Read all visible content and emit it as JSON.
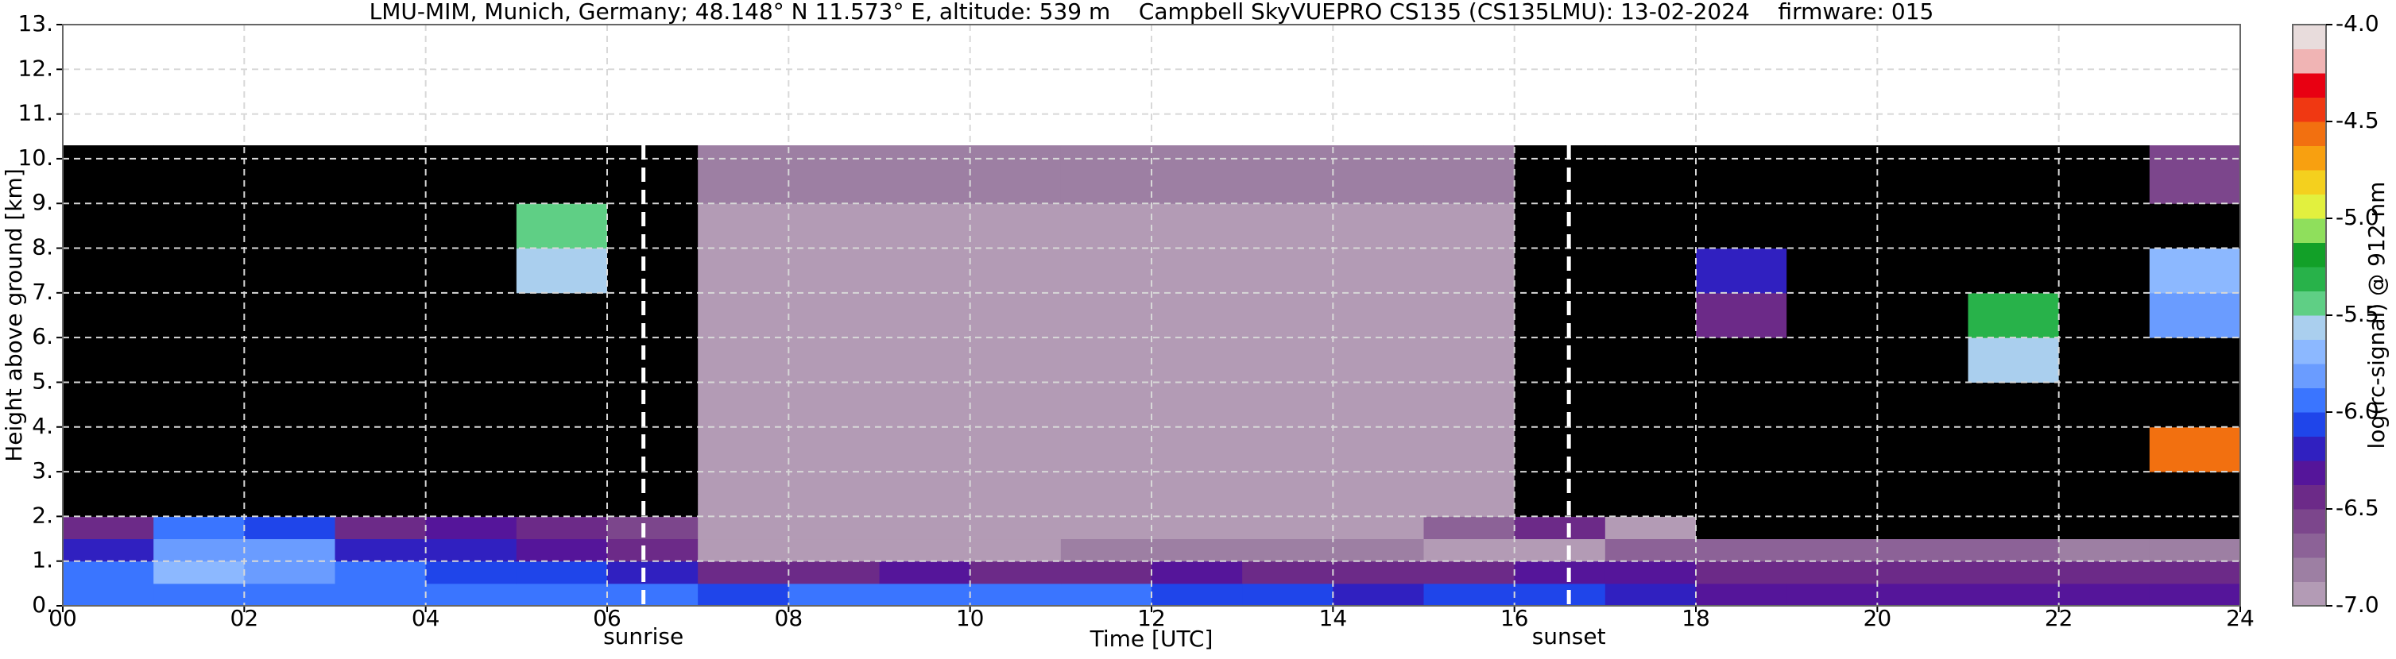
{
  "chart_data": {
    "type": "heatmap",
    "title": "LMU-MIM, Munich, Germany; 48.148° N 11.573° E, altitude: 539 m    Campbell SkyVUEPRO CS135 (CS135LMU): 13-02-2024    firmware: 015",
    "xlabel": "Time [UTC]",
    "ylabel": "Height above ground [km]",
    "xlim": [
      0,
      24
    ],
    "xticks": [
      {
        "value": 0,
        "label": "00"
      },
      {
        "value": 2,
        "label": "02"
      },
      {
        "value": 4,
        "label": "04"
      },
      {
        "value": 6,
        "label": "06"
      },
      {
        "value": 8,
        "label": "08"
      },
      10,
      12,
      14,
      16,
      18,
      20,
      22,
      24
    ],
    "ylim": [
      0,
      13
    ],
    "yticks": [
      {
        "value": 0,
        "label": "0."
      },
      {
        "value": 1,
        "label": "1."
      },
      {
        "value": 2,
        "label": "2."
      },
      {
        "value": 3,
        "label": "3."
      },
      {
        "value": 4,
        "label": "4."
      },
      {
        "value": 5,
        "label": "5."
      },
      {
        "value": 6,
        "label": "6."
      },
      {
        "value": 7,
        "label": "7."
      },
      {
        "value": 8,
        "label": "8."
      },
      {
        "value": 9,
        "label": "9."
      },
      {
        "value": 10,
        "label": "10."
      },
      {
        "value": 11,
        "label": "11."
      },
      {
        "value": 12,
        "label": "12."
      },
      {
        "value": 13,
        "label": "13."
      }
    ],
    "grid": true,
    "grid_color": "#d8d8d8",
    "x_bins": [
      0,
      1,
      2,
      3,
      4,
      5,
      6,
      7,
      8,
      9,
      10,
      11,
      12,
      13,
      14,
      15,
      16,
      17,
      18,
      19,
      20,
      21,
      22,
      23,
      24
    ],
    "y_bins": [
      0,
      0.5,
      1,
      1.5,
      2,
      2.5,
      3,
      4,
      5,
      6,
      7,
      8,
      9,
      10.3
    ],
    "z": [
      [
        -5.9,
        -5.9,
        -5.9,
        -5.9,
        -5.9,
        -6.0,
        -6.0,
        -6.1,
        -6.0,
        -5.9,
        -6.0,
        -6.0,
        -6.1,
        -6.1,
        -6.2,
        -6.1,
        -6.1,
        -6.2,
        -6.3,
        -6.3,
        -6.3,
        -6.3,
        -6.3,
        -6.3
      ],
      [
        -6.0,
        -5.7,
        -5.8,
        -6.0,
        -6.1,
        -6.1,
        -6.2,
        -6.5,
        -6.4,
        -6.3,
        -6.5,
        -6.4,
        -6.3,
        -6.4,
        -6.5,
        -6.4,
        -6.3,
        -6.3,
        -6.4,
        -6.4,
        -6.4,
        -6.4,
        -6.4,
        -6.4
      ],
      [
        -6.2,
        -5.8,
        -5.8,
        -6.2,
        -6.2,
        -6.3,
        -6.4,
        -6.9,
        -6.9,
        -6.9,
        -6.9,
        -6.8,
        -6.8,
        -6.8,
        -6.8,
        -6.9,
        -6.9,
        -6.7,
        -6.7,
        -6.7,
        -6.7,
        -6.7,
        -6.8,
        -6.8
      ],
      [
        -6.5,
        -6.0,
        -6.1,
        -6.4,
        -6.3,
        -6.4,
        -6.6,
        -6.9,
        -6.9,
        -6.9,
        -6.9,
        -6.9,
        -6.9,
        -6.9,
        -6.9,
        -6.7,
        -6.5,
        -6.9,
        -7.5,
        -7.5,
        -7.5,
        -7.5,
        -7.5,
        -7.5
      ],
      [
        -7.4,
        -7.2,
        -7.2,
        -7.3,
        -7.2,
        -7.2,
        -7.3,
        -6.95,
        -6.95,
        -6.95,
        -6.95,
        -6.95,
        -6.95,
        -6.95,
        -6.95,
        -6.95,
        -7.2,
        -7.5,
        -7.5,
        -7.5,
        -7.5,
        -7.5,
        -7.5,
        -7.5
      ],
      [
        -7.5,
        -7.5,
        -7.5,
        -7.5,
        -7.5,
        -7.5,
        -7.5,
        -6.95,
        -6.95,
        -6.95,
        -6.95,
        -6.95,
        -6.95,
        -6.95,
        -6.95,
        -6.95,
        -7.3,
        -7.5,
        -7.5,
        -7.5,
        -7.5,
        -7.5,
        -7.5,
        -7.5
      ],
      [
        -7.5,
        -7.5,
        -7.5,
        -7.5,
        -7.5,
        -7.5,
        -7.5,
        -6.95,
        -6.95,
        -6.95,
        -6.95,
        -6.95,
        -6.95,
        -6.95,
        -6.95,
        -6.95,
        -7.3,
        -7.5,
        -7.5,
        -7.5,
        -7.5,
        -7.5,
        -7.5,
        -4.6
      ],
      [
        -7.5,
        -7.5,
        -7.5,
        -7.5,
        -7.5,
        -7.5,
        -7.5,
        -6.95,
        -6.95,
        -6.95,
        -6.95,
        -6.95,
        -6.95,
        -6.95,
        -6.95,
        -6.95,
        -7.3,
        -7.5,
        -7.5,
        -7.5,
        -7.5,
        -7.5,
        -7.5,
        -7.5
      ],
      [
        -7.5,
        -7.5,
        -7.5,
        -7.5,
        -7.5,
        -7.5,
        -7.5,
        -6.95,
        -6.95,
        -6.95,
        -6.95,
        -6.95,
        -6.95,
        -6.95,
        -6.95,
        -6.95,
        -7.3,
        -7.5,
        -7.5,
        -7.5,
        -7.5,
        -5.6,
        -7.5,
        -7.5
      ],
      [
        -7.5,
        -7.5,
        -7.5,
        -7.5,
        -7.5,
        -7.5,
        -7.5,
        -6.95,
        -6.95,
        -6.95,
        -6.95,
        -6.95,
        -6.95,
        -6.95,
        -6.95,
        -6.95,
        -7.3,
        -7.5,
        -6.5,
        -7.5,
        -7.5,
        -5.3,
        -7.5,
        -5.8
      ],
      [
        -7.5,
        -7.5,
        -7.5,
        -7.5,
        -7.5,
        -5.6,
        -7.5,
        -6.95,
        -6.95,
        -6.95,
        -6.95,
        -6.95,
        -6.95,
        -6.95,
        -6.95,
        -6.95,
        -7.3,
        -7.5,
        -6.2,
        -7.5,
        -7.5,
        -7.5,
        -7.5,
        -5.7
      ],
      [
        -7.5,
        -7.5,
        -7.5,
        -7.5,
        -7.5,
        -5.4,
        -7.5,
        -6.9,
        -6.9,
        -6.9,
        -6.9,
        -6.9,
        -6.9,
        -6.9,
        -6.9,
        -6.9,
        -7.3,
        -7.5,
        -7.5,
        -7.5,
        -7.5,
        -7.5,
        -7.5,
        -7.5
      ],
      [
        -7.3,
        -7.3,
        -7.3,
        -7.3,
        -7.3,
        -7.3,
        -7.3,
        -6.8,
        -6.8,
        -6.8,
        -6.8,
        -6.8,
        -6.8,
        -6.8,
        -6.8,
        -6.8,
        -7.1,
        -7.3,
        -7.3,
        -7.3,
        -7.3,
        -7.3,
        -7.3,
        -6.6
      ]
    ],
    "under_color": "#000000",
    "annotations": [
      {
        "x": 6.4,
        "label": "sunrise"
      },
      {
        "x": 16.6,
        "label": "sunset"
      }
    ],
    "annotation_color": "#ffffff",
    "colorbar": {
      "label": "log(rc-signal) @ 912 nm",
      "lim": [
        -7,
        -4
      ],
      "ticks": [
        {
          "value": -7,
          "label": "-7.0"
        },
        -6.5,
        {
          "value": -6,
          "label": "-6.0"
        },
        -5.5,
        {
          "value": -5,
          "label": "-5.0"
        },
        -4.5,
        {
          "value": -4,
          "label": "-4.0"
        }
      ],
      "colors": [
        "#b39bb5",
        "#9d7fa3",
        "#8c6297",
        "#7c468c",
        "#6c2a88",
        "#55159a",
        "#3020c0",
        "#1f45ea",
        "#3a75ff",
        "#6a9cff",
        "#8cb8ff",
        "#aacfee",
        "#5fcf85",
        "#28b24a",
        "#12a028",
        "#8fdf5c",
        "#e2f03e",
        "#f4d01e",
        "#f8a010",
        "#f27010",
        "#f03812",
        "#e80012",
        "#f0b4b4",
        "#e8dcdc"
      ]
    }
  }
}
